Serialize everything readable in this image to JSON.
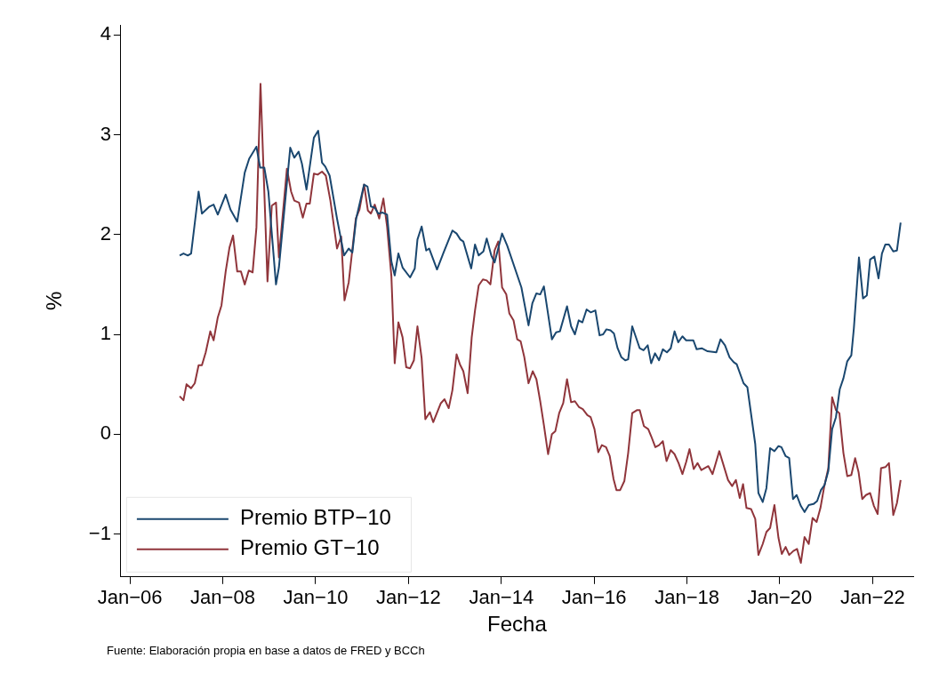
{
  "chart_data": {
    "type": "line",
    "xlabel": "Fecha",
    "ylabel": "%",
    "annotations": [
      "Fuente: Elaboración propia en base a datos de FRED y BCCh"
    ],
    "xlim": [
      "2005-10-21",
      "2022-11-16"
    ],
    "ylim": [
      -1.43,
      4.1
    ],
    "xticks": [
      {
        "value": "2006-01",
        "label": "Jan−06"
      },
      {
        "value": "2008-01",
        "label": "Jan−08"
      },
      {
        "value": "2010-01",
        "label": "Jan−10"
      },
      {
        "value": "2012-01",
        "label": "Jan−12"
      },
      {
        "value": "2014-01",
        "label": "Jan−14"
      },
      {
        "value": "2016-01",
        "label": "Jan−16"
      },
      {
        "value": "2018-01",
        "label": "Jan−18"
      },
      {
        "value": "2020-01",
        "label": "Jan−20"
      },
      {
        "value": "2022-01",
        "label": "Jan−22"
      }
    ],
    "yticks": [
      {
        "value": -1,
        "label": "−1"
      },
      0,
      1,
      2,
      3,
      4
    ],
    "legend": "bottom left",
    "line_style": "solid",
    "series": [
      {
        "name": "Premio BTP−10",
        "color": "#1a476f",
        "x": [
          "2007-01-27",
          "2007-02-26",
          "2007-04-01",
          "2007-04-27",
          "2007-06-25",
          "2007-07-21",
          "2007-09-18",
          "2007-10-21",
          "2007-11-23",
          "2008-01-24",
          "2008-03-02",
          "2008-04-24",
          "2008-06-22",
          "2008-07-27",
          "2008-09-22",
          "2008-10-21",
          "2008-11-23",
          "2008-12-25",
          "2009-02-23",
          "2009-03-18",
          "2009-06-15",
          "2009-07-17",
          "2009-08-20",
          "2009-09-15",
          "2009-10-21",
          "2009-12-18",
          "2010-01-21",
          "2010-02-20",
          "2010-03-18",
          "2010-04-21",
          "2010-06-18",
          "2010-08-13",
          "2010-09-18",
          "2010-10-17",
          "2010-11-16",
          "2011-01-17",
          "2011-02-13",
          "2011-03-12",
          "2011-04-11",
          "2011-05-09",
          "2011-06-12",
          "2011-07-17",
          "2011-08-20",
          "2011-09-15",
          "2011-10-14",
          "2011-11-16",
          "2012-01-14",
          "2012-02-20",
          "2012-03-12",
          "2012-04-14",
          "2012-05-20",
          "2012-06-12",
          "2012-08-13",
          "2012-10-04",
          "2012-12-12",
          "2013-01-14",
          "2013-02-13",
          "2013-03-08",
          "2013-05-09",
          "2013-06-08",
          "2013-07-07",
          "2013-08-13",
          "2013-09-08",
          "2013-10-14",
          "2013-11-09",
          "2014-01-07",
          "2014-02-16",
          "2014-06-08",
          "2014-08-03",
          "2014-09-02",
          "2014-10-04",
          "2014-11-03",
          "2014-12-02",
          "2015-02-03",
          "2015-03-08",
          "2015-04-07",
          "2015-06-02",
          "2015-07-04",
          "2015-08-03",
          "2015-09-02",
          "2015-10-01",
          "2015-11-03",
          "2015-12-05",
          "2016-01-11",
          "2016-02-13",
          "2016-03-12",
          "2016-04-07",
          "2016-05-09",
          "2016-06-05",
          "2016-07-04",
          "2016-08-03",
          "2016-09-02",
          "2016-09-25",
          "2016-10-27",
          "2016-12-25",
          "2017-01-24",
          "2017-02-26",
          "2017-03-25",
          "2017-04-24",
          "2017-05-26",
          "2017-06-25",
          "2017-07-27",
          "2017-08-26",
          "2017-09-25",
          "2017-10-24",
          "2017-11-26",
          "2017-12-25",
          "2018-02-20",
          "2018-03-18",
          "2018-04-27",
          "2018-06-12",
          "2018-08-20",
          "2018-09-22",
          "2018-10-27",
          "2018-12-02",
          "2019-01-04",
          "2019-01-27",
          "2019-03-22",
          "2019-04-21",
          "2019-06-22",
          "2019-07-17",
          "2019-08-20",
          "2019-09-18",
          "2019-10-17",
          "2019-11-20",
          "2019-12-22",
          "2020-01-14",
          "2020-02-16",
          "2020-03-15",
          "2020-04-14",
          "2020-05-13",
          "2020-06-15",
          "2020-07-14",
          "2020-08-16",
          "2020-09-22",
          "2020-10-21",
          "2020-11-20",
          "2020-12-18",
          "2021-01-17",
          "2021-02-16",
          "2021-03-18",
          "2021-04-17",
          "2021-05-16",
          "2021-06-15",
          "2021-07-17",
          "2021-08-06",
          "2021-09-15",
          "2021-10-17",
          "2021-11-16",
          "2021-12-12",
          "2022-01-14",
          "2022-02-16",
          "2022-03-15",
          "2022-04-11",
          "2022-05-09",
          "2022-06-12",
          "2022-07-11",
          "2022-08-09"
        ],
        "values": [
          1.79,
          1.81,
          1.79,
          1.81,
          2.43,
          2.21,
          2.28,
          2.3,
          2.2,
          2.4,
          2.25,
          2.13,
          2.62,
          2.76,
          2.88,
          2.67,
          2.67,
          2.43,
          1.5,
          1.67,
          2.87,
          2.77,
          2.83,
          2.71,
          2.45,
          2.97,
          3.04,
          2.72,
          2.68,
          2.59,
          2.16,
          1.79,
          1.86,
          1.82,
          2.16,
          2.5,
          2.48,
          2.28,
          2.27,
          2.21,
          2.22,
          2.2,
          1.73,
          1.59,
          1.81,
          1.67,
          1.57,
          1.66,
          1.95,
          2.08,
          1.84,
          1.86,
          1.65,
          1.82,
          2.04,
          2.01,
          1.95,
          1.93,
          1.66,
          1.9,
          1.79,
          1.83,
          1.96,
          1.79,
          1.72,
          2.01,
          1.89,
          1.47,
          1.09,
          1.31,
          1.41,
          1.4,
          1.48,
          0.95,
          1.02,
          1.03,
          1.28,
          1.08,
          1.0,
          1.14,
          1.12,
          1.25,
          1.22,
          1.24,
          0.99,
          1.0,
          1.05,
          1.04,
          1.01,
          0.86,
          0.77,
          0.74,
          0.75,
          1.08,
          0.86,
          0.84,
          0.89,
          0.71,
          0.81,
          0.74,
          0.85,
          0.82,
          0.86,
          1.03,
          0.92,
          0.98,
          0.94,
          0.94,
          0.85,
          0.86,
          0.83,
          0.82,
          0.95,
          0.89,
          0.77,
          0.72,
          0.7,
          0.51,
          0.47,
          -0.1,
          -0.59,
          -0.68,
          -0.54,
          -0.14,
          -0.17,
          -0.12,
          -0.13,
          -0.22,
          -0.24,
          -0.65,
          -0.61,
          -0.72,
          -0.78,
          -0.71,
          -0.7,
          -0.67,
          -0.56,
          -0.51,
          -0.37,
          0.05,
          0.17,
          0.45,
          0.56,
          0.73,
          0.79,
          1.06,
          1.77,
          1.36,
          1.39,
          1.75,
          1.78,
          1.56,
          1.81,
          1.9,
          1.9,
          1.83,
          1.84,
          2.12
        ]
      },
      {
        "name": "Premio GT−10",
        "color": "#90353b",
        "x": [
          "2007-01-27",
          "2007-02-26",
          "2007-03-22",
          "2007-04-27",
          "2007-05-26",
          "2007-06-25",
          "2007-07-21",
          "2007-08-20",
          "2007-09-25",
          "2007-10-21",
          "2007-11-23",
          "2007-12-22",
          "2008-01-24",
          "2008-02-23",
          "2008-03-22",
          "2008-04-24",
          "2008-05-23",
          "2008-06-22",
          "2008-07-24",
          "2008-08-23",
          "2008-09-22",
          "2008-10-24",
          "2008-12-18",
          "2009-01-21",
          "2009-02-23",
          "2009-03-18",
          "2009-05-20",
          "2009-06-22",
          "2009-07-17",
          "2009-08-23",
          "2009-09-22",
          "2009-10-21",
          "2009-11-16",
          "2009-12-18",
          "2010-01-17",
          "2010-02-20",
          "2010-03-22",
          "2010-04-27",
          "2010-06-18",
          "2010-07-21",
          "2010-08-16",
          "2010-09-18",
          "2010-11-13",
          "2010-12-12",
          "2011-01-17",
          "2011-02-16",
          "2011-03-12",
          "2011-04-11",
          "2011-05-16",
          "2011-06-18",
          "2011-07-17",
          "2011-08-20",
          "2011-09-15",
          "2011-10-14",
          "2011-11-16",
          "2011-12-15",
          "2012-01-14",
          "2012-02-13",
          "2012-03-12",
          "2012-04-14",
          "2012-05-13",
          "2012-06-18",
          "2012-07-14",
          "2012-09-12",
          "2012-10-11",
          "2012-11-13",
          "2012-12-12",
          "2013-01-14",
          "2013-02-09",
          "2013-03-08",
          "2013-04-11",
          "2013-05-13",
          "2013-06-08",
          "2013-07-07",
          "2013-08-09",
          "2013-09-08",
          "2013-10-07",
          "2013-11-09",
          "2013-12-08",
          "2014-01-07",
          "2014-02-09",
          "2014-03-05",
          "2014-04-07",
          "2014-05-06",
          "2014-06-02",
          "2014-07-01",
          "2014-08-03",
          "2014-09-05",
          "2014-10-04",
          "2014-11-03",
          "2014-12-02",
          "2015-01-04",
          "2015-02-03",
          "2015-03-02",
          "2015-04-01",
          "2015-05-03",
          "2015-06-02",
          "2015-07-04",
          "2015-08-03",
          "2015-09-05",
          "2015-10-04",
          "2015-11-09",
          "2015-12-05",
          "2016-01-04",
          "2016-02-03",
          "2016-03-02",
          "2016-04-04",
          "2016-05-03",
          "2016-06-02",
          "2016-06-25",
          "2016-07-24",
          "2016-08-26",
          "2016-09-25",
          "2016-10-27",
          "2016-12-02",
          "2016-12-25",
          "2017-01-27",
          "2017-03-02",
          "2017-03-25",
          "2017-04-27",
          "2017-05-26",
          "2017-06-25",
          "2017-07-24",
          "2017-08-26",
          "2017-09-25",
          "2017-10-27",
          "2017-11-26",
          "2017-12-25",
          "2018-01-21",
          "2018-02-23",
          "2018-03-25",
          "2018-04-24",
          "2018-06-18",
          "2018-07-21",
          "2018-09-12",
          "2018-11-20",
          "2018-12-22",
          "2019-01-21",
          "2019-02-20",
          "2019-03-18",
          "2019-04-14",
          "2019-05-20",
          "2019-06-22",
          "2019-07-17",
          "2019-08-20",
          "2019-09-18",
          "2019-10-17",
          "2019-11-20",
          "2019-12-22",
          "2020-01-17",
          "2020-02-16",
          "2020-03-15",
          "2020-04-17",
          "2020-05-16",
          "2020-06-15",
          "2020-07-14",
          "2020-08-16",
          "2020-09-15",
          "2020-10-17",
          "2020-11-16",
          "2020-12-15",
          "2021-01-17",
          "2021-02-16",
          "2021-03-18",
          "2021-04-14",
          "2021-05-16",
          "2021-06-15",
          "2021-07-17",
          "2021-08-16",
          "2021-09-12",
          "2021-10-11",
          "2021-11-09",
          "2021-12-12",
          "2022-01-11",
          "2022-02-09",
          "2022-03-08",
          "2022-04-11",
          "2022-05-09",
          "2022-06-12",
          "2022-07-11",
          "2022-08-09"
        ],
        "values": [
          0.38,
          0.34,
          0.5,
          0.46,
          0.51,
          0.69,
          0.69,
          0.82,
          1.03,
          0.94,
          1.17,
          1.29,
          1.63,
          1.87,
          1.99,
          1.63,
          1.63,
          1.5,
          1.64,
          1.62,
          2.07,
          3.51,
          1.53,
          2.29,
          2.32,
          1.77,
          2.66,
          2.43,
          2.34,
          2.32,
          2.17,
          2.31,
          2.31,
          2.61,
          2.6,
          2.63,
          2.59,
          2.34,
          1.86,
          1.98,
          1.34,
          1.52,
          2.16,
          2.25,
          2.5,
          2.24,
          2.21,
          2.3,
          2.16,
          2.36,
          2.08,
          1.58,
          0.71,
          1.12,
          0.97,
          0.67,
          0.66,
          0.74,
          1.08,
          0.76,
          0.15,
          0.22,
          0.12,
          0.31,
          0.35,
          0.26,
          0.44,
          0.8,
          0.7,
          0.63,
          0.41,
          0.97,
          1.24,
          1.49,
          1.55,
          1.54,
          1.5,
          1.84,
          1.93,
          1.47,
          1.4,
          1.21,
          1.14,
          0.95,
          0.93,
          0.77,
          0.51,
          0.63,
          0.55,
          0.33,
          0.09,
          -0.2,
          0.0,
          0.03,
          0.21,
          0.31,
          0.55,
          0.32,
          0.33,
          0.27,
          0.25,
          0.19,
          0.17,
          0.05,
          -0.18,
          -0.11,
          -0.13,
          -0.22,
          -0.45,
          -0.56,
          -0.56,
          -0.47,
          -0.19,
          0.21,
          0.24,
          0.24,
          0.08,
          0.05,
          -0.02,
          -0.13,
          -0.11,
          -0.07,
          -0.27,
          -0.16,
          -0.2,
          -0.29,
          -0.4,
          -0.28,
          -0.15,
          -0.35,
          -0.29,
          -0.36,
          -0.32,
          -0.4,
          -0.17,
          -0.46,
          -0.52,
          -0.46,
          -0.64,
          -0.5,
          -0.74,
          -0.75,
          -0.85,
          -1.21,
          -1.1,
          -0.98,
          -0.94,
          -0.71,
          -1.04,
          -1.2,
          -1.13,
          -1.21,
          -1.17,
          -1.15,
          -1.29,
          -1.03,
          -1.1,
          -0.84,
          -0.88,
          -0.74,
          -0.53,
          -0.34,
          0.37,
          0.24,
          0.21,
          -0.19,
          -0.42,
          -0.41,
          -0.24,
          -0.38,
          -0.65,
          -0.61,
          -0.59,
          -0.72,
          -0.8,
          -0.34,
          -0.33,
          -0.29,
          -0.81,
          -0.69,
          -0.46
        ]
      }
    ]
  }
}
